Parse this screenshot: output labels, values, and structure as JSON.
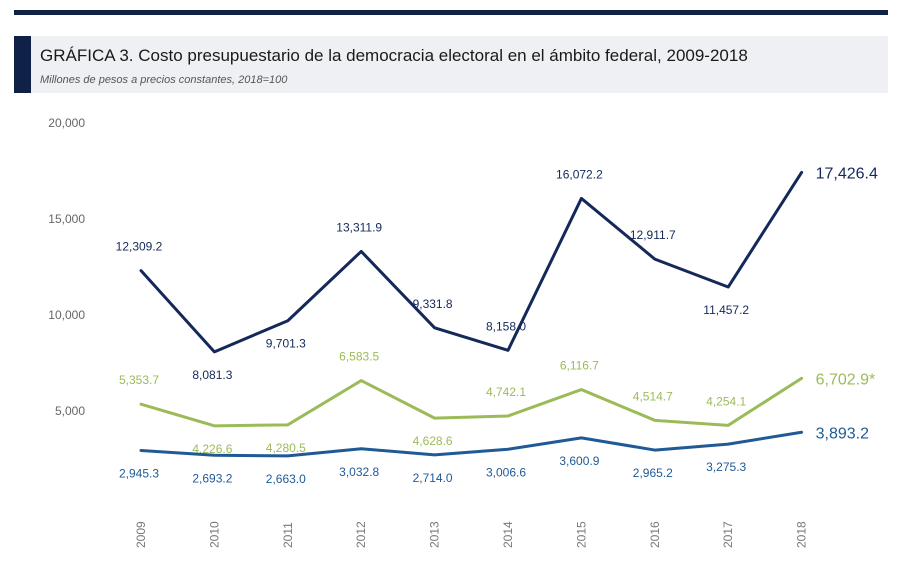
{
  "chart_data": {
    "type": "line",
    "title": "GRÁFICA 3. Costo presupuestario de la democracia electoral en el ámbito federal, 2009-2018",
    "subtitle": "Millones de pesos a precios constantes, 2018=100",
    "xlabel": "",
    "ylabel": "",
    "categories": [
      "2009",
      "2010",
      "2011",
      "2012",
      "2013",
      "2014",
      "2015",
      "2016",
      "2017",
      "2018"
    ],
    "ylim": [
      0,
      20000
    ],
    "yticks": [
      5000,
      10000,
      15000,
      20000
    ],
    "ytick_labels": [
      "5,000",
      "10,000",
      "15,000",
      "20,000"
    ],
    "grid": false,
    "legend": "none",
    "series": [
      {
        "key": "top",
        "color": "#14285a",
        "values": [
          12309.2,
          8081.3,
          9701.3,
          13311.9,
          9331.8,
          8158.0,
          16072.2,
          12911.7,
          11457.2,
          17426.4
        ],
        "labels": [
          "12,309.2",
          "8,081.3",
          "9,701.3",
          "13,311.9",
          "9,331.8",
          "8,158.0",
          "16,072.2",
          "12,911.7",
          "11,457.2",
          "17,426.4"
        ]
      },
      {
        "key": "middle",
        "color": "#9bbb59",
        "values": [
          5353.7,
          4226.6,
          4280.5,
          6583.5,
          4628.6,
          4742.1,
          6116.7,
          4514.7,
          4254.1,
          6702.9
        ],
        "labels": [
          "5,353.7",
          "4,226.6",
          "4,280.5",
          "6,583.5",
          "4,628.6",
          "4,742.1",
          "6,116.7",
          "4,514.7",
          "4,254.1",
          "6,702.9*"
        ]
      },
      {
        "key": "bottom",
        "color": "#1f5a96",
        "values": [
          2945.3,
          2693.2,
          2663.0,
          3032.8,
          2714.0,
          3006.6,
          3600.9,
          2965.2,
          3275.3,
          3893.2
        ],
        "labels": [
          "2,945.3",
          "2,693.2",
          "2,663.0",
          "3,032.8",
          "2,714.0",
          "3,006.6",
          "3,600.9",
          "2,965.2",
          "3,275.3",
          "3,893.2"
        ]
      }
    ]
  }
}
